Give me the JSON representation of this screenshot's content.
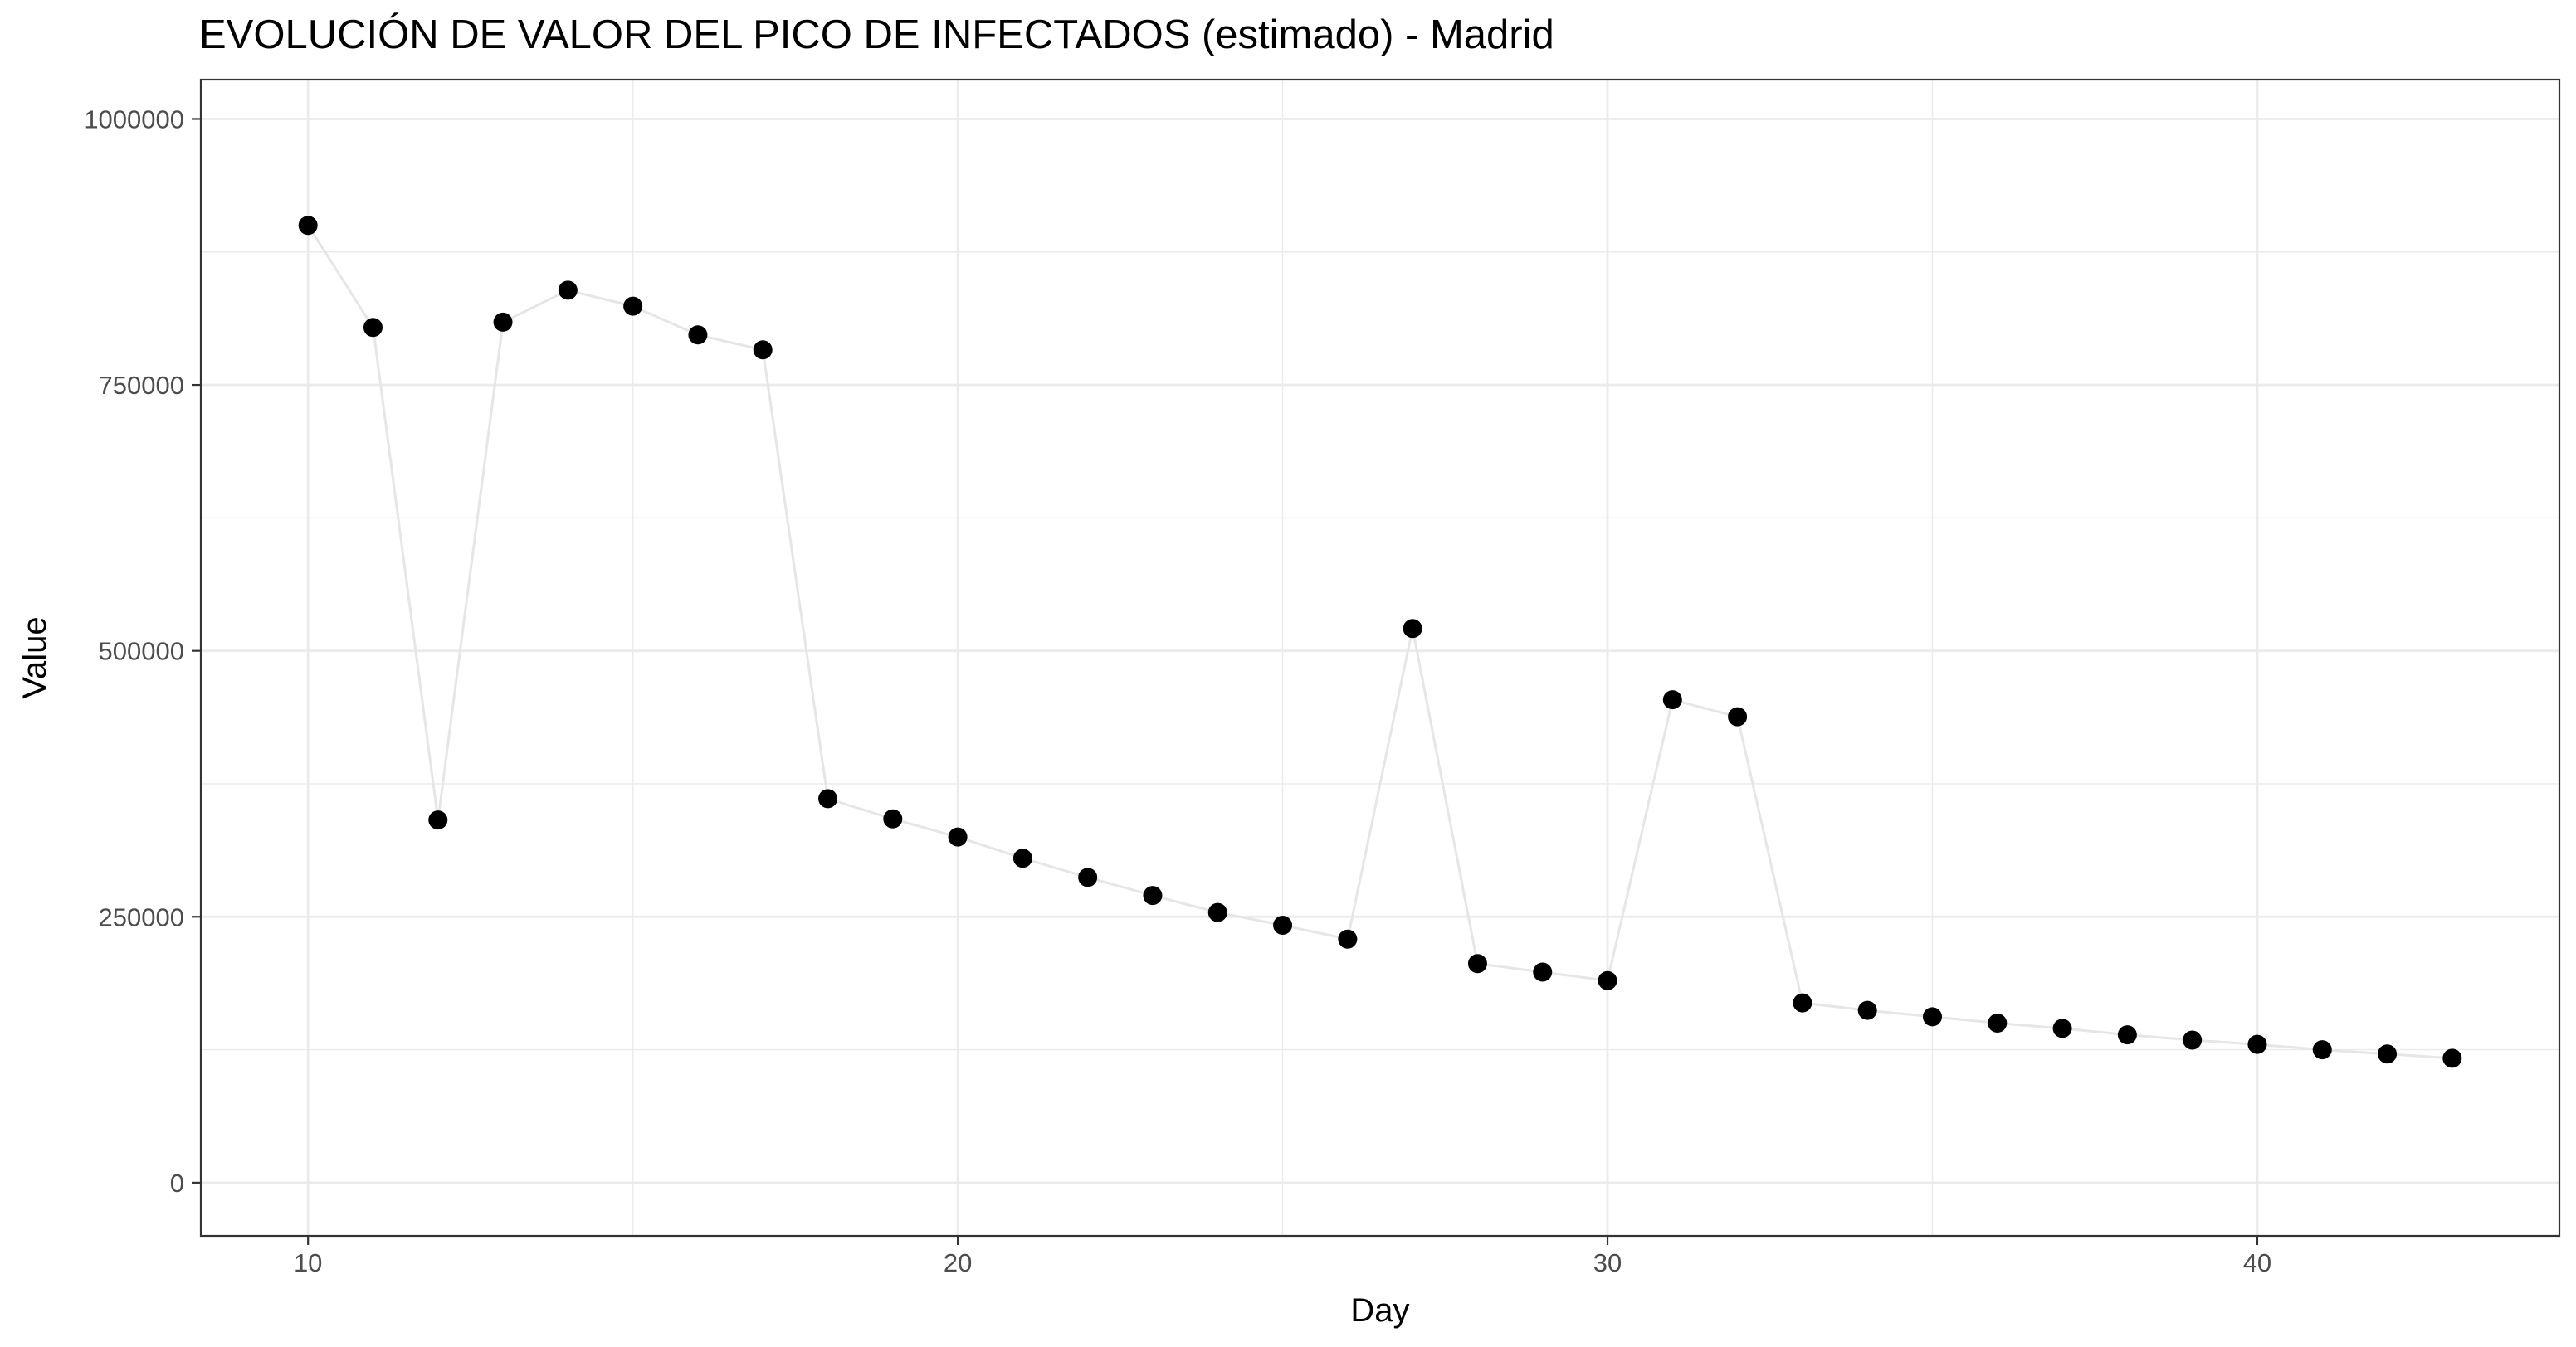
{
  "chart_data": {
    "type": "scatter",
    "title": "EVOLUCIÓN DE VALOR DEL PICO DE INFECTADOS (estimado) - Madrid",
    "xlabel": "Day",
    "ylabel": "Value",
    "xlim": [
      8.35,
      44.65
    ],
    "ylim": [
      -50000,
      1037000
    ],
    "x_ticks": [
      10,
      20,
      30,
      40
    ],
    "x_tick_labels": [
      "10",
      "20",
      "30",
      "40"
    ],
    "y_ticks": [
      0,
      250000,
      500000,
      750000,
      1000000
    ],
    "y_tick_labels": [
      "0",
      "250000",
      "500000",
      "750000",
      "1000000"
    ],
    "grid": true,
    "connecting_line": true,
    "colors": {
      "points": "#000000",
      "line": "#e6e6e6",
      "grid": "#ebebeb",
      "panel_border": "#333333",
      "tick_text": "#4d4d4d"
    },
    "series": [
      {
        "x": [
          10,
          11,
          12,
          13,
          14,
          15,
          16,
          17,
          18,
          19,
          20,
          21,
          22,
          23,
          24,
          25,
          26,
          27,
          28,
          29,
          30,
          31,
          32,
          33,
          34,
          35,
          36,
          37,
          38,
          39,
          40,
          41,
          42,
          43
        ],
        "values": [
          900000,
          804000,
          341000,
          809000,
          839000,
          824000,
          797000,
          783000,
          361000,
          342000,
          325000,
          305000,
          287000,
          270000,
          254000,
          242000,
          229000,
          521000,
          206000,
          198000,
          190000,
          454000,
          438000,
          169000,
          162000,
          156000,
          150000,
          145000,
          139000,
          134000,
          130000,
          125000,
          121000,
          117000
        ]
      }
    ]
  }
}
